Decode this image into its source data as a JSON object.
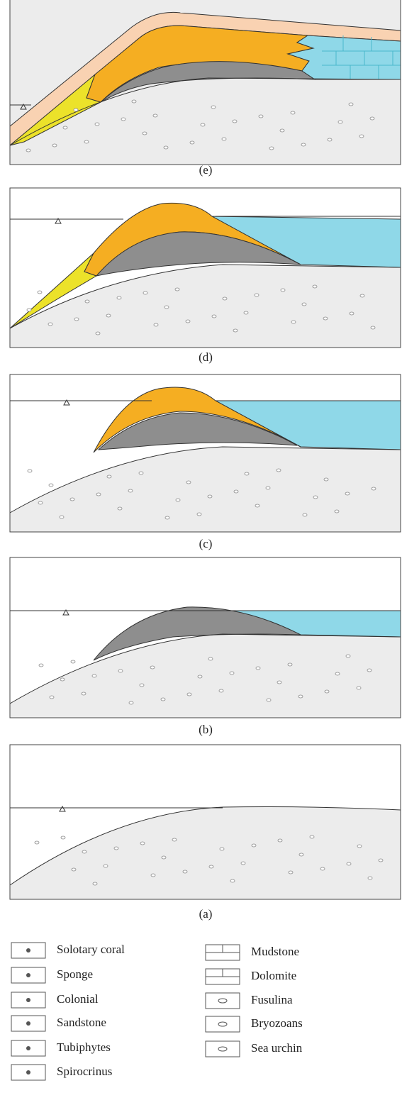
{
  "panels": [
    {
      "label": "(e)"
    },
    {
      "label": "(d)"
    },
    {
      "label": "(c)"
    },
    {
      "label": "(b)"
    },
    {
      "label": "(a)"
    }
  ],
  "legend": {
    "left": [
      "Solotary coral",
      "Sponge",
      "Colonial",
      "Sandstone",
      "Tubiphytes",
      "Spirocrinus"
    ],
    "right": [
      "Mudstone",
      "Dolomite",
      "Fusulina",
      "Bryozoans",
      "Sea urchin"
    ]
  }
}
